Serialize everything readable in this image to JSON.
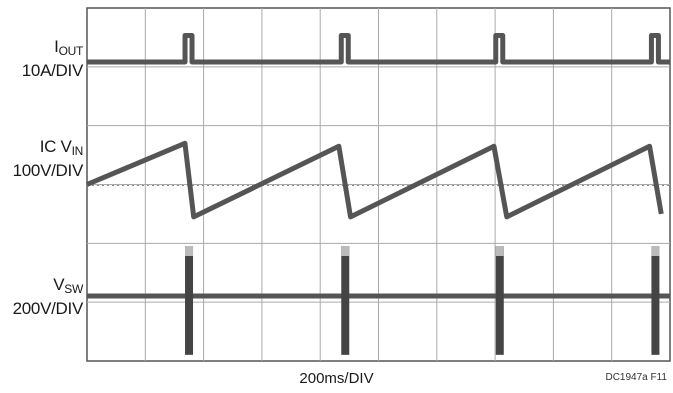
{
  "chart_data": {
    "type": "line",
    "title": "",
    "x_scale": {
      "label": "200ms/DIV",
      "divisions": 10,
      "ms_per_div": 200
    },
    "grid": true,
    "channels": [
      {
        "name_main": "I",
        "name_sub": "OUT",
        "scale": "10A/DIV",
        "color": "#555555",
        "kind": "pulse",
        "baseline_div": 1.25,
        "pulse_times_div": [
          1.75,
          4.43,
          7.08,
          9.75
        ],
        "pulse_height_div": 0.45
      },
      {
        "name_main": "IC V",
        "name_sub": "IN",
        "scale": "100V/DIV",
        "color": "#555555",
        "kind": "sawtooth",
        "points_div": [
          [
            0,
            3.0
          ],
          [
            1.68,
            3.7
          ],
          [
            1.83,
            2.45
          ],
          [
            4.32,
            3.65
          ],
          [
            4.52,
            2.45
          ],
          [
            6.98,
            3.65
          ],
          [
            7.2,
            2.45
          ],
          [
            9.65,
            3.65
          ],
          [
            9.85,
            2.5
          ]
        ]
      },
      {
        "name_main": "V",
        "name_sub": "SW",
        "scale": "200V/DIV",
        "color": "#555555",
        "kind": "switching",
        "baseline_div": 1.0,
        "burst_times_div": [
          1.75,
          4.43,
          7.08,
          9.75
        ],
        "burst_top_div": 1.85,
        "burst_bottom_div": 0.0
      }
    ],
    "figure_id": "DC1947a F11"
  }
}
